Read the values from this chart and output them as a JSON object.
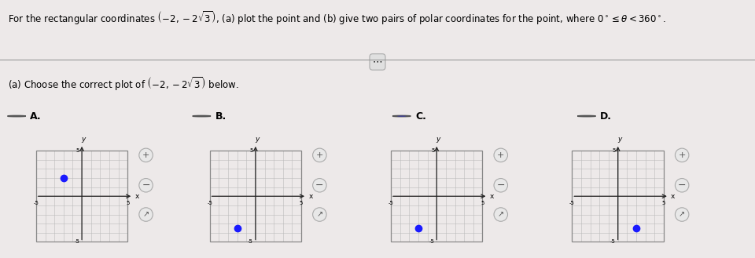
{
  "bg_color": "#ede9e9",
  "title": "For the rectangular coordinates $\\left(-2, -2\\sqrt{3}\\right)$, (a) plot the point and (b) give two pairs of polar coordinates for the point, where $0^\\circ \\leq \\theta < 360^\\circ$.",
  "subtitle": "(a) Choose the correct plot of $\\left(-2, -2\\sqrt{3}\\right)$ below.",
  "options": [
    "A.",
    "B.",
    "C.",
    "D."
  ],
  "selected_idx": 2,
  "plot_points": [
    [
      -2,
      2
    ],
    [
      -2,
      -3.464
    ],
    [
      -2,
      -3.464
    ],
    [
      2,
      -3.464
    ]
  ],
  "grid_color": "#bbbbbb",
  "axis_color": "#222222",
  "point_color": "#1a1aff",
  "point_size": 6,
  "grid_min": -6,
  "grid_max": 6,
  "tick_labels": [
    -5,
    5
  ],
  "separator_color": "#999999",
  "radio_unsel_color": "#ffffff",
  "radio_sel_color": "#1a1aff",
  "radio_border": "#555555",
  "icon_circle_color": "#e8e8e8",
  "icon_border_color": "#aaaaaa"
}
